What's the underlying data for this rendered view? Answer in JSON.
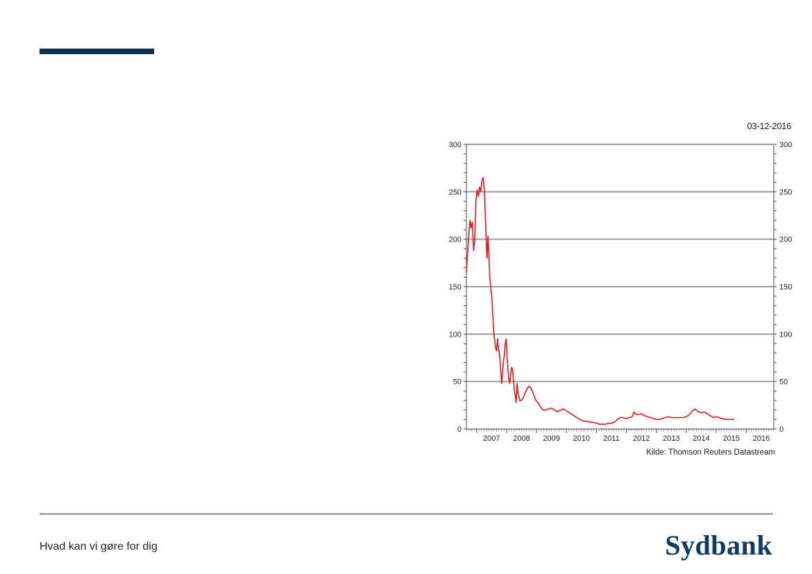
{
  "header": {
    "accent_color": "#0e2f5a"
  },
  "chart_date": "03-12-2016",
  "footer": {
    "tagline": "Hvad kan vi gøre for dig",
    "logo_text": "Sydbank",
    "logo_color": "#0e3a6b"
  },
  "chart_data": {
    "type": "line",
    "title": "",
    "xlabel": "",
    "ylabel": "",
    "source": "Kilde: Thomson Reuters Datastream",
    "ylim": [
      0,
      300
    ],
    "yticks": [
      0,
      50,
      100,
      150,
      200,
      250,
      300
    ],
    "y_axis_both_sides": true,
    "grid": true,
    "xlim": [
      2006.66,
      2016.92
    ],
    "xtick_labels": [
      "2007",
      "2008",
      "2009",
      "2010",
      "2011",
      "2012",
      "2013",
      "2014",
      "2015",
      "2016"
    ],
    "series": [
      {
        "color": "#e8141c",
        "points": [
          [
            2006.66,
            165
          ],
          [
            2006.7,
            185
          ],
          [
            2006.74,
            205
          ],
          [
            2006.78,
            220
          ],
          [
            2006.82,
            212
          ],
          [
            2006.86,
            218
          ],
          [
            2006.9,
            188
          ],
          [
            2006.94,
            200
          ],
          [
            2006.98,
            240
          ],
          [
            2007.02,
            252
          ],
          [
            2007.06,
            245
          ],
          [
            2007.1,
            255
          ],
          [
            2007.14,
            250
          ],
          [
            2007.18,
            262
          ],
          [
            2007.22,
            265
          ],
          [
            2007.26,
            253
          ],
          [
            2007.28,
            235
          ],
          [
            2007.31,
            210
          ],
          [
            2007.33,
            192
          ],
          [
            2007.35,
            180
          ],
          [
            2007.38,
            203
          ],
          [
            2007.41,
            185
          ],
          [
            2007.44,
            160
          ],
          [
            2007.48,
            148
          ],
          [
            2007.52,
            135
          ],
          [
            2007.55,
            115
          ],
          [
            2007.58,
            100
          ],
          [
            2007.61,
            92
          ],
          [
            2007.64,
            85
          ],
          [
            2007.67,
            82
          ],
          [
            2007.7,
            95
          ],
          [
            2007.73,
            85
          ],
          [
            2007.76,
            80
          ],
          [
            2007.79,
            70
          ],
          [
            2007.81,
            58
          ],
          [
            2007.84,
            48
          ],
          [
            2007.87,
            60
          ],
          [
            2007.9,
            72
          ],
          [
            2007.93,
            78
          ],
          [
            2007.96,
            90
          ],
          [
            2007.99,
            95
          ],
          [
            2008.02,
            75
          ],
          [
            2008.05,
            62
          ],
          [
            2008.08,
            52
          ],
          [
            2008.11,
            48
          ],
          [
            2008.14,
            58
          ],
          [
            2008.17,
            65
          ],
          [
            2008.2,
            62
          ],
          [
            2008.23,
            52
          ],
          [
            2008.26,
            42
          ],
          [
            2008.29,
            35
          ],
          [
            2008.32,
            28
          ],
          [
            2008.35,
            48
          ],
          [
            2008.38,
            38
          ],
          [
            2008.41,
            35
          ],
          [
            2008.44,
            30
          ],
          [
            2008.5,
            30
          ],
          [
            2008.56,
            33
          ],
          [
            2008.62,
            38
          ],
          [
            2008.68,
            42
          ],
          [
            2008.74,
            45
          ],
          [
            2008.8,
            44
          ],
          [
            2008.86,
            40
          ],
          [
            2008.92,
            35
          ],
          [
            2008.98,
            30
          ],
          [
            2009.04,
            28
          ],
          [
            2009.1,
            25
          ],
          [
            2009.16,
            22
          ],
          [
            2009.22,
            20
          ],
          [
            2009.3,
            20
          ],
          [
            2009.4,
            21
          ],
          [
            2009.5,
            22
          ],
          [
            2009.6,
            20
          ],
          [
            2009.7,
            18
          ],
          [
            2009.8,
            20
          ],
          [
            2009.9,
            21
          ],
          [
            2010.0,
            19
          ],
          [
            2010.1,
            17
          ],
          [
            2010.2,
            15
          ],
          [
            2010.3,
            13
          ],
          [
            2010.4,
            11
          ],
          [
            2010.5,
            9
          ],
          [
            2010.6,
            8
          ],
          [
            2010.7,
            8
          ],
          [
            2010.8,
            7
          ],
          [
            2010.9,
            7
          ],
          [
            2011.0,
            6
          ],
          [
            2011.1,
            5
          ],
          [
            2011.2,
            5
          ],
          [
            2011.3,
            5
          ],
          [
            2011.4,
            6
          ],
          [
            2011.5,
            6
          ],
          [
            2011.6,
            7
          ],
          [
            2011.7,
            10
          ],
          [
            2011.8,
            12
          ],
          [
            2011.9,
            12
          ],
          [
            2012.0,
            11
          ],
          [
            2012.1,
            12
          ],
          [
            2012.2,
            13
          ],
          [
            2012.25,
            18
          ],
          [
            2012.3,
            16
          ],
          [
            2012.4,
            15
          ],
          [
            2012.5,
            16
          ],
          [
            2012.6,
            14
          ],
          [
            2012.7,
            13
          ],
          [
            2012.8,
            12
          ],
          [
            2012.9,
            11
          ],
          [
            2013.0,
            10
          ],
          [
            2013.1,
            10
          ],
          [
            2013.2,
            11
          ],
          [
            2013.3,
            12
          ],
          [
            2013.4,
            13
          ],
          [
            2013.5,
            12
          ],
          [
            2013.6,
            12
          ],
          [
            2013.7,
            12
          ],
          [
            2013.8,
            12
          ],
          [
            2013.9,
            12
          ],
          [
            2014.0,
            13
          ],
          [
            2014.1,
            15
          ],
          [
            2014.2,
            19
          ],
          [
            2014.3,
            21
          ],
          [
            2014.4,
            18
          ],
          [
            2014.5,
            17
          ],
          [
            2014.6,
            18
          ],
          [
            2014.7,
            16
          ],
          [
            2014.8,
            14
          ],
          [
            2014.9,
            12
          ],
          [
            2015.0,
            13
          ],
          [
            2015.1,
            12
          ],
          [
            2015.2,
            11
          ],
          [
            2015.3,
            10
          ],
          [
            2015.4,
            10
          ],
          [
            2015.5,
            10
          ],
          [
            2015.6,
            10
          ]
        ]
      }
    ]
  }
}
